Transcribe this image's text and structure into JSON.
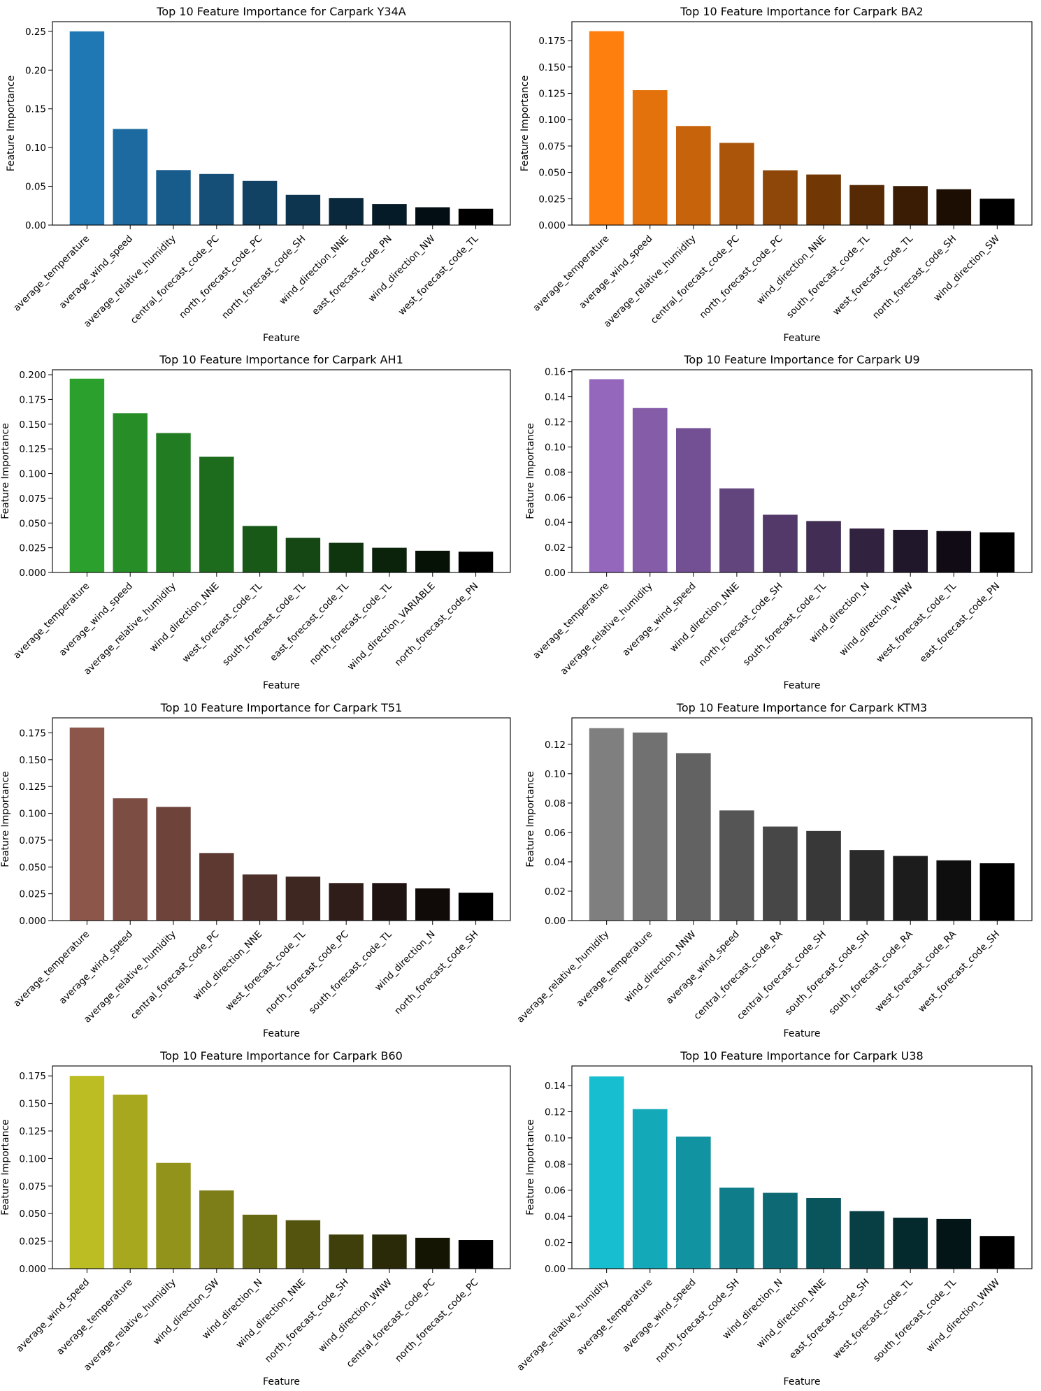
{
  "chart_data": [
    {
      "type": "bar",
      "title": "Top 10 Feature Importance for Carpark Y34A",
      "xlabel": "Feature",
      "ylabel": "Feature Importance",
      "ylim": [
        0,
        0.2625
      ],
      "yticks": [
        0,
        0.05,
        0.1,
        0.15,
        0.2,
        0.25
      ],
      "ytick_labels": [
        "0.00",
        "0.05",
        "0.10",
        "0.15",
        "0.20",
        "0.25"
      ],
      "grid": false,
      "categories": [
        "average_temperature",
        "average_wind_speed",
        "average_relative_humidity",
        "central_forecast_code_PC",
        "north_forecast_code_PC",
        "north_forecast_code_SH",
        "wind_direction_NNE",
        "east_forecast_code_PN",
        "wind_direction_NW",
        "west_forecast_code_TL"
      ],
      "values": [
        0.25,
        0.124,
        0.071,
        0.066,
        0.057,
        0.039,
        0.035,
        0.027,
        0.023,
        0.021
      ],
      "colors": [
        "#1f77b4",
        "#1c6aa0",
        "#185c8c",
        "#154f78",
        "#114264",
        "#0e3550",
        "#0a283c",
        "#061b28",
        "#030d14",
        "#000000"
      ]
    },
    {
      "type": "bar",
      "title": "Top 10 Feature Importance for Carpark BA2",
      "xlabel": "Feature",
      "ylabel": "Feature Importance",
      "ylim": [
        0,
        0.193
      ],
      "yticks": [
        0,
        0.025,
        0.05,
        0.075,
        0.1,
        0.125,
        0.15,
        0.175
      ],
      "ytick_labels": [
        "0.000",
        "0.025",
        "0.050",
        "0.075",
        "0.100",
        "0.125",
        "0.150",
        "0.175"
      ],
      "grid": false,
      "categories": [
        "average_temperature",
        "average_wind_speed",
        "average_relative_humidity",
        "central_forecast_code_PC",
        "north_forecast_code_PC",
        "wind_direction_NNE",
        "south_forecast_code_TL",
        "west_forecast_code_TL",
        "north_forecast_code_SH",
        "wind_direction_SW"
      ],
      "values": [
        0.184,
        0.128,
        0.094,
        0.078,
        0.052,
        0.048,
        0.038,
        0.037,
        0.034,
        0.025
      ],
      "colors": [
        "#ff7f0e",
        "#e3710c",
        "#c6630b",
        "#aa5509",
        "#8e4708",
        "#713806",
        "#552a05",
        "#391c03",
        "#1c0e02",
        "#000000"
      ]
    },
    {
      "type": "bar",
      "title": "Top 10 Feature Importance for Carpark AH1",
      "xlabel": "Feature",
      "ylabel": "Feature Importance",
      "ylim": [
        0,
        0.205
      ],
      "yticks": [
        0,
        0.025,
        0.05,
        0.075,
        0.1,
        0.125,
        0.15,
        0.175,
        0.2
      ],
      "ytick_labels": [
        "0.000",
        "0.025",
        "0.050",
        "0.075",
        "0.100",
        "0.125",
        "0.150",
        "0.175",
        "0.200"
      ],
      "grid": false,
      "categories": [
        "average_temperature",
        "average_wind_speed",
        "average_relative_humidity",
        "wind_direction_NNE",
        "west_forecast_code_TL",
        "south_forecast_code_TL",
        "east_forecast_code_TL",
        "north_forecast_code_TL",
        "wind_direction_VARIABLE",
        "north_forecast_code_PN"
      ],
      "values": [
        0.196,
        0.161,
        0.141,
        0.117,
        0.047,
        0.035,
        0.03,
        0.025,
        0.022,
        0.021
      ],
      "colors": [
        "#2ca02c",
        "#278e27",
        "#227c22",
        "#1d6b1d",
        "#185918",
        "#144714",
        "#0f350f",
        "#0a230a",
        "#051205",
        "#000000"
      ]
    },
    {
      "type": "bar",
      "title": "Top 10 Feature Importance for Carpark U9",
      "xlabel": "Feature",
      "ylabel": "Feature Importance",
      "ylim": [
        0,
        0.1615
      ],
      "yticks": [
        0,
        0.02,
        0.04,
        0.06,
        0.08,
        0.1,
        0.12,
        0.14,
        0.16
      ],
      "ytick_labels": [
        "0.00",
        "0.02",
        "0.04",
        "0.06",
        "0.08",
        "0.10",
        "0.12",
        "0.14",
        "0.16"
      ],
      "grid": false,
      "categories": [
        "average_temperature",
        "average_relative_humidity",
        "average_wind_speed",
        "wind_direction_NNE",
        "north_forecast_code_SH",
        "south_forecast_code_TL",
        "wind_direction_N",
        "wind_direction_WNW",
        "west_forecast_code_TL",
        "east_forecast_code_PN"
      ],
      "values": [
        0.154,
        0.131,
        0.115,
        0.067,
        0.046,
        0.041,
        0.035,
        0.034,
        0.033,
        0.032
      ],
      "colors": [
        "#9467bd",
        "#845ca8",
        "#735093",
        "#63457e",
        "#523969",
        "#422e54",
        "#31223f",
        "#21172a",
        "#100b15",
        "#000000"
      ]
    },
    {
      "type": "bar",
      "title": "Top 10 Feature Importance for Carpark T51",
      "xlabel": "Feature",
      "ylabel": "Feature Importance",
      "ylim": [
        0,
        0.189
      ],
      "yticks": [
        0,
        0.025,
        0.05,
        0.075,
        0.1,
        0.125,
        0.15,
        0.175
      ],
      "ytick_labels": [
        "0.000",
        "0.025",
        "0.050",
        "0.075",
        "0.100",
        "0.125",
        "0.150",
        "0.175"
      ],
      "grid": false,
      "categories": [
        "average_temperature",
        "average_wind_speed",
        "average_relative_humidity",
        "central_forecast_code_PC",
        "wind_direction_NNE",
        "west_forecast_code_TL",
        "north_forecast_code_PC",
        "south_forecast_code_TL",
        "wind_direction_N",
        "north_forecast_code_SH"
      ],
      "values": [
        0.18,
        0.114,
        0.106,
        0.063,
        0.043,
        0.041,
        0.035,
        0.035,
        0.03,
        0.026
      ],
      "colors": [
        "#8c564b",
        "#7c4d43",
        "#6d433a",
        "#5d3932",
        "#4e302a",
        "#3e2621",
        "#2f1d19",
        "#1f1311",
        "#100a08",
        "#000000"
      ]
    },
    {
      "type": "bar",
      "title": "Top 10 Feature Importance for Carpark KTM3",
      "xlabel": "Feature",
      "ylabel": "Feature Importance",
      "ylim": [
        0,
        0.138
      ],
      "yticks": [
        0,
        0.02,
        0.04,
        0.06,
        0.08,
        0.1,
        0.12
      ],
      "ytick_labels": [
        "0.00",
        "0.02",
        "0.04",
        "0.06",
        "0.08",
        "0.10",
        "0.12"
      ],
      "grid": false,
      "categories": [
        "average_relative_humidity",
        "average_temperature",
        "wind_direction_NNW",
        "average_wind_speed",
        "central_forecast_code_RA",
        "central_forecast_code_SH",
        "south_forecast_code_SH",
        "south_forecast_code_RA",
        "west_forecast_code_RA",
        "west_forecast_code_SH"
      ],
      "values": [
        0.131,
        0.128,
        0.114,
        0.075,
        0.064,
        0.061,
        0.048,
        0.044,
        0.041,
        0.039
      ],
      "colors": [
        "#7f7f7f",
        "#717171",
        "#626262",
        "#555555",
        "#474747",
        "#383838",
        "#2a2a2a",
        "#1c1c1c",
        "#0e0e0e",
        "#000000"
      ]
    },
    {
      "type": "bar",
      "title": "Top 10 Feature Importance for Carpark B60",
      "xlabel": "Feature",
      "ylabel": "Feature Importance",
      "ylim": [
        0,
        0.184
      ],
      "yticks": [
        0,
        0.025,
        0.05,
        0.075,
        0.1,
        0.125,
        0.15,
        0.175
      ],
      "ytick_labels": [
        "0.000",
        "0.025",
        "0.050",
        "0.075",
        "0.100",
        "0.125",
        "0.150",
        "0.175"
      ],
      "grid": false,
      "categories": [
        "average_wind_speed",
        "average_temperature",
        "average_relative_humidity",
        "wind_direction_SW",
        "wind_direction_N",
        "wind_direction_NNE",
        "north_forecast_code_SH",
        "wind_direction_WNW",
        "central_forecast_code_PC",
        "north_forecast_code_PC"
      ],
      "values": [
        0.175,
        0.158,
        0.096,
        0.071,
        0.049,
        0.044,
        0.031,
        0.031,
        0.028,
        0.026
      ],
      "colors": [
        "#bcbd22",
        "#a7a81e",
        "#92931a",
        "#7d7e17",
        "#686913",
        "#54540f",
        "#3f3f0b",
        "#2a2a08",
        "#151504",
        "#000000"
      ]
    },
    {
      "type": "bar",
      "title": "Top 10 Feature Importance for Carpark U38",
      "xlabel": "Feature",
      "ylabel": "Feature Importance",
      "ylim": [
        0,
        0.155
      ],
      "yticks": [
        0,
        0.02,
        0.04,
        0.06,
        0.08,
        0.1,
        0.12,
        0.14
      ],
      "ytick_labels": [
        "0.00",
        "0.02",
        "0.04",
        "0.06",
        "0.08",
        "0.10",
        "0.12",
        "0.14"
      ],
      "grid": false,
      "categories": [
        "average_relative_humidity",
        "average_temperature",
        "average_wind_speed",
        "north_forecast_code_SH",
        "wind_direction_N",
        "wind_direction_NNE",
        "east_forecast_code_SH",
        "west_forecast_code_TL",
        "south_forecast_code_TL",
        "wind_direction_WNW"
      ],
      "values": [
        0.147,
        0.122,
        0.101,
        0.062,
        0.058,
        0.054,
        0.044,
        0.039,
        0.038,
        0.025
      ],
      "colors": [
        "#17becf",
        "#14a9b8",
        "#1293a1",
        "#0f7e8a",
        "#0d6973",
        "#0a545c",
        "#083f45",
        "#052a2e",
        "#031517",
        "#000000"
      ]
    }
  ]
}
